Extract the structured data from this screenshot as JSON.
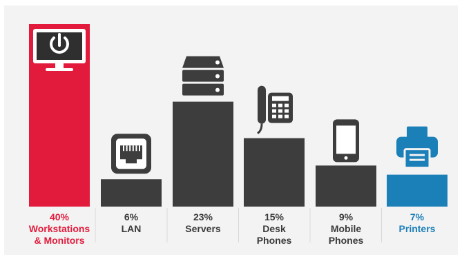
{
  "chart_data": {
    "type": "bar",
    "categories": [
      "Workstations & Monitors",
      "LAN",
      "Servers",
      "Desk Phones",
      "Mobile Phones",
      "Printers"
    ],
    "values": [
      40,
      6,
      23,
      15,
      9,
      7
    ],
    "title": "",
    "xlabel": "",
    "ylabel": "",
    "ylim": [
      0,
      40
    ],
    "grid": false,
    "legend": "none"
  },
  "labels": [
    {
      "percent": "40%",
      "line1": "Workstations",
      "line2": "& Monitors",
      "color": "#e21b3c"
    },
    {
      "percent": "6%",
      "line1": "LAN",
      "line2": "",
      "color": "#3a3a3a"
    },
    {
      "percent": "23%",
      "line1": "Servers",
      "line2": "",
      "color": "#3a3a3a"
    },
    {
      "percent": "15%",
      "line1": "Desk",
      "line2": "Phones",
      "color": "#3a3a3a"
    },
    {
      "percent": "9%",
      "line1": "Mobile",
      "line2": "Phones",
      "color": "#3a3a3a"
    },
    {
      "percent": "7%",
      "line1": "Printers",
      "line2": "",
      "color": "#1b7fb8"
    }
  ],
  "colors": {
    "bar_highlight": "#e21b3c",
    "bar_default": "#3d3d3d",
    "bar_accent": "#1b7fb8",
    "separator": "#d8d8d8",
    "icon_light": "#ffffff"
  },
  "icons": [
    "monitor-power-icon",
    "ethernet-port-icon",
    "server-stack-icon",
    "desk-phone-icon",
    "mobile-phone-icon",
    "printer-icon"
  ]
}
